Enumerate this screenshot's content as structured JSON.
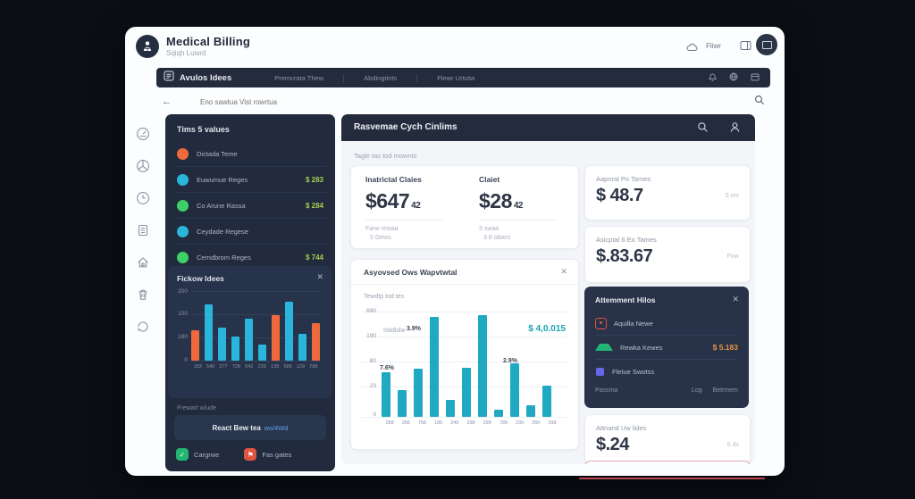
{
  "app": {
    "title": "Medical Billing",
    "subtitle": "Sqiqh Luwrd",
    "topbar": {
      "filter_label": "Fliwr"
    }
  },
  "icons": {
    "close": "✕",
    "back": "←",
    "check": "✓",
    "flag": "⚑"
  },
  "navbar": {
    "brand": "Avulos Idees",
    "tabs": [
      {
        "label": "Premcrata Thew"
      },
      {
        "label": "Abdingtints"
      },
      {
        "label": "Flewr Urtutw"
      }
    ]
  },
  "search": {
    "placeholder": "Eno sawtua Vist rowrtua"
  },
  "sidebar": {
    "icons": [
      "dashboard-gauge",
      "pie-chart",
      "clock",
      "document",
      "home",
      "trash",
      "history"
    ]
  },
  "left_panel": {
    "title": "Tims 5 values",
    "legend": [
      {
        "label": "Dictada Teme",
        "value": "",
        "color": "#ee6a3c"
      },
      {
        "label": "Euwumue Reges",
        "value": "$ 283",
        "color": "#2ab5dc"
      },
      {
        "label": "Co Arune Rassa",
        "value": "$ 284",
        "color": "#3ecf66"
      },
      {
        "label": "Ceydade Regese",
        "value": "",
        "color": "#2ab5dc"
      },
      {
        "label": "Cemdbrom Reges",
        "value": "$ 744",
        "color": "#3ecf66"
      }
    ],
    "chart": {
      "type": "bar",
      "title": "Fickow Idees",
      "y_max": 200,
      "y_ticks": [
        "200",
        "100",
        "180",
        "0"
      ],
      "x_labels": [
        "183",
        "540",
        "277",
        "728",
        "542",
        "229",
        "139",
        "585",
        "129",
        "788"
      ],
      "bars": [
        {
          "v": 88,
          "color": "#ee6a3c"
        },
        {
          "v": 162,
          "color": "#2ab5dc"
        },
        {
          "v": 95,
          "color": "#2ab5dc"
        },
        {
          "v": 68,
          "color": "#2ab5dc"
        },
        {
          "v": 120,
          "color": "#2ab5dc"
        },
        {
          "v": 45,
          "color": "#2ab5dc"
        },
        {
          "v": 130,
          "color": "#ee6a3c"
        },
        {
          "v": 168,
          "color": "#2ab5dc"
        },
        {
          "v": 78,
          "color": "#2ab5dc"
        },
        {
          "v": 108,
          "color": "#ee6a3c"
        }
      ]
    },
    "footnote": "Frewart wlude",
    "action_button": {
      "label": "React Bew tea",
      "link_label": "ws/4Wd"
    },
    "footer_items": [
      {
        "label": "Cargrwe",
        "color": "#23b573"
      },
      {
        "label": "Fas gates",
        "color": "#e0543f"
      }
    ]
  },
  "main": {
    "header": {
      "title": "Rasvemae Cych Cinlims"
    },
    "subtitle": "Tagle tas tod mownts",
    "metrics": [
      {
        "label": "Inatrictal Claies",
        "value": "$647",
        "cents": "42",
        "line1": "Farw rewaa",
        "line2": "5 Gews"
      },
      {
        "label": "Claiet",
        "value": "$28",
        "cents": "42",
        "line1": "3 swaa",
        "line2": "3 8 obwrs"
      }
    ],
    "chart_card": {
      "type": "bar",
      "title": "Asyovsed Ows Wapvtwtal",
      "subtitle": "Tewdtp tod tes",
      "series_label": "Istidislw",
      "y_max": 100,
      "y_ticks": [
        "690",
        "190",
        "80",
        "23",
        "0"
      ],
      "x_labels": [
        "288",
        "265",
        "758",
        "185",
        "246",
        "298",
        "298",
        "789",
        "230",
        "260",
        "298"
      ],
      "bars": [
        42,
        25,
        46,
        95,
        16,
        47,
        97,
        7,
        51,
        11,
        30
      ],
      "bar_color": "#1fa9c2",
      "annotations": [
        {
          "text": "7.6%"
        },
        {
          "text": "3.9%"
        },
        {
          "text": "2.9%"
        }
      ],
      "highlight_value": "$ 4,0.015"
    }
  },
  "right_column": {
    "cards": [
      {
        "label": "Aapnral Po Tames",
        "value": "$ 48.7",
        "note": "5 ms"
      },
      {
        "label": "Asicptal 6 Eo Tames",
        "value": "$.83.67",
        "note": "Fow"
      }
    ],
    "alerts_card": {
      "title": "Attemment Hilos",
      "items": [
        {
          "label": "Aquilla Newe",
          "value": ""
        },
        {
          "label": "Rewka Kewes",
          "value": "$ 5.183"
        },
        {
          "label": "Fletue Swotss",
          "value": ""
        }
      ],
      "footer_left": "Passma",
      "footer_links": [
        {
          "label": "Log"
        },
        {
          "label": "Betrmem"
        }
      ]
    },
    "bottom_card": {
      "label": "Attnand Uw lides",
      "value": "$.24",
      "note": "5 ds"
    }
  }
}
